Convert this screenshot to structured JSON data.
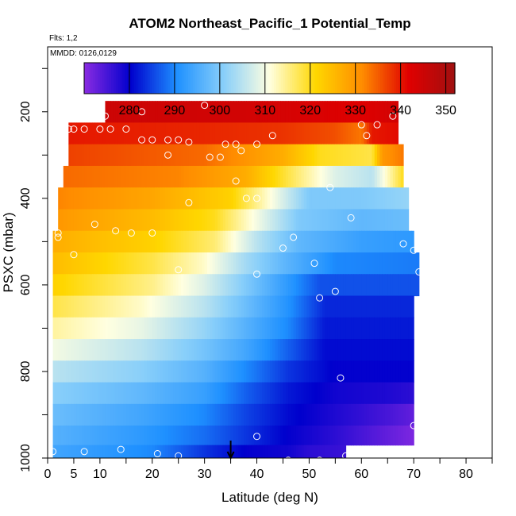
{
  "chart_data": {
    "type": "heatmap",
    "title": "ATOM2 Northeast_Pacific_1 Potential_Temp",
    "annotations": [
      "Flts: 1,2",
      "MMDD: 0126,0129"
    ],
    "xlabel": "Latitude (deg N)",
    "ylabel": "PSXC (mbar)",
    "xlim": [
      0,
      85
    ],
    "ylim": [
      1000,
      50
    ],
    "x_ticks": [
      0,
      5,
      10,
      20,
      30,
      40,
      50,
      60,
      70,
      80
    ],
    "y_ticks": [
      200,
      400,
      600,
      800,
      1000
    ],
    "colorbar": {
      "range": [
        270,
        352
      ],
      "ticks": [
        280,
        290,
        300,
        310,
        320,
        330,
        340,
        350
      ],
      "colors": [
        "#8a2be2",
        "#0000cd",
        "#1e90ff",
        "#87cefa",
        "#ffffe0",
        "#ffd700",
        "#ff8c00",
        "#e00000",
        "#a01010"
      ]
    },
    "marker": {
      "latitude": 35,
      "pressure": 1000,
      "shape": "down-arrow"
    },
    "bands": [
      {
        "pressure": 200,
        "lat_range": [
          11,
          67
        ],
        "control": [
          [
            11,
            345
          ],
          [
            40,
            344
          ],
          [
            60,
            342
          ],
          [
            67,
            344
          ]
        ]
      },
      {
        "pressure": 250,
        "lat_range": [
          4,
          67
        ],
        "control": [
          [
            4,
            340
          ],
          [
            30,
            339
          ],
          [
            45,
            338
          ],
          [
            55,
            336
          ],
          [
            60,
            333
          ],
          [
            62,
            340
          ],
          [
            67,
            341
          ]
        ]
      },
      {
        "pressure": 300,
        "lat_range": [
          4,
          68
        ],
        "control": [
          [
            4,
            337
          ],
          [
            30,
            334
          ],
          [
            45,
            327
          ],
          [
            52,
            320
          ],
          [
            62,
            318
          ],
          [
            64,
            330
          ],
          [
            68,
            333
          ]
        ]
      },
      {
        "pressure": 350,
        "lat_range": [
          3,
          68
        ],
        "control": [
          [
            3,
            334
          ],
          [
            25,
            332
          ],
          [
            38,
            327
          ],
          [
            46,
            318
          ],
          [
            55,
            308
          ],
          [
            62,
            305
          ],
          [
            68,
            320
          ]
        ]
      },
      {
        "pressure": 400,
        "lat_range": [
          2,
          69
        ],
        "control": [
          [
            2,
            332
          ],
          [
            20,
            328
          ],
          [
            35,
            322
          ],
          [
            42,
            312
          ],
          [
            50,
            300
          ],
          [
            60,
            300
          ],
          [
            69,
            302
          ]
        ]
      },
      {
        "pressure": 450,
        "lat_range": [
          2,
          69
        ],
        "control": [
          [
            2,
            330
          ],
          [
            20,
            325
          ],
          [
            32,
            320
          ],
          [
            40,
            310
          ],
          [
            48,
            300
          ],
          [
            60,
            297
          ],
          [
            69,
            298
          ]
        ]
      },
      {
        "pressure": 500,
        "lat_range": [
          1,
          70
        ],
        "control": [
          [
            1,
            327
          ],
          [
            20,
            322
          ],
          [
            32,
            316
          ],
          [
            40,
            305
          ],
          [
            48,
            297
          ],
          [
            60,
            293
          ],
          [
            70,
            292
          ]
        ]
      },
      {
        "pressure": 550,
        "lat_range": [
          1,
          71
        ],
        "control": [
          [
            1,
            325
          ],
          [
            20,
            318
          ],
          [
            30,
            312
          ],
          [
            38,
            303
          ],
          [
            45,
            297
          ],
          [
            55,
            290
          ],
          [
            71,
            289
          ]
        ]
      },
      {
        "pressure": 600,
        "lat_range": [
          1,
          71
        ],
        "control": [
          [
            1,
            322
          ],
          [
            20,
            315
          ],
          [
            30,
            308
          ],
          [
            38,
            300
          ],
          [
            45,
            293
          ],
          [
            52,
            286
          ],
          [
            71,
            286
          ]
        ]
      },
      {
        "pressure": 650,
        "lat_range": [
          1,
          70
        ],
        "control": [
          [
            1,
            318
          ],
          [
            18,
            312
          ],
          [
            30,
            305
          ],
          [
            38,
            298
          ],
          [
            46,
            291
          ],
          [
            53,
            283
          ],
          [
            70,
            283
          ]
        ]
      },
      {
        "pressure": 700,
        "lat_range": [
          1,
          70
        ],
        "control": [
          [
            1,
            314
          ],
          [
            18,
            309
          ],
          [
            30,
            302
          ],
          [
            38,
            296
          ],
          [
            46,
            290
          ],
          [
            53,
            282
          ],
          [
            70,
            282
          ]
        ]
      },
      {
        "pressure": 750,
        "lat_range": [
          1,
          70
        ],
        "control": [
          [
            1,
            310
          ],
          [
            18,
            305
          ],
          [
            30,
            299
          ],
          [
            38,
            294
          ],
          [
            46,
            287
          ],
          [
            53,
            281
          ],
          [
            70,
            281
          ]
        ]
      },
      {
        "pressure": 800,
        "lat_range": [
          1,
          70
        ],
        "control": [
          [
            1,
            305
          ],
          [
            18,
            301
          ],
          [
            30,
            296
          ],
          [
            38,
            290
          ],
          [
            46,
            284
          ],
          [
            55,
            280
          ],
          [
            70,
            280
          ]
        ]
      },
      {
        "pressure": 850,
        "lat_range": [
          1,
          70
        ],
        "control": [
          [
            1,
            301
          ],
          [
            18,
            297
          ],
          [
            30,
            293
          ],
          [
            38,
            287
          ],
          [
            46,
            282
          ],
          [
            55,
            279
          ],
          [
            65,
            278
          ],
          [
            70,
            277
          ]
        ]
      },
      {
        "pressure": 900,
        "lat_range": [
          1,
          70
        ],
        "control": [
          [
            1,
            298
          ],
          [
            18,
            294
          ],
          [
            30,
            290
          ],
          [
            38,
            285
          ],
          [
            46,
            281
          ],
          [
            55,
            278
          ],
          [
            65,
            275
          ],
          [
            70,
            273
          ]
        ]
      },
      {
        "pressure": 950,
        "lat_range": [
          1,
          70
        ],
        "control": [
          [
            1,
            296
          ],
          [
            18,
            292
          ],
          [
            30,
            288
          ],
          [
            38,
            284
          ],
          [
            46,
            280
          ],
          [
            55,
            277
          ],
          [
            65,
            273
          ],
          [
            70,
            271
          ]
        ]
      },
      {
        "pressure": 990,
        "lat_range": [
          1,
          57
        ],
        "control": [
          [
            1,
            294
          ],
          [
            20,
            290
          ],
          [
            30,
            284
          ],
          [
            38,
            280
          ],
          [
            46,
            279
          ],
          [
            50,
            277
          ],
          [
            57,
            276
          ]
        ]
      }
    ],
    "points": [
      [
        11,
        210
      ],
      [
        30,
        185
      ],
      [
        18,
        200
      ],
      [
        4,
        240
      ],
      [
        5,
        240
      ],
      [
        7,
        240
      ],
      [
        10,
        240
      ],
      [
        12,
        240
      ],
      [
        15,
        240
      ],
      [
        18,
        265
      ],
      [
        20,
        265
      ],
      [
        23,
        265
      ],
      [
        25,
        265
      ],
      [
        27,
        270
      ],
      [
        23,
        300
      ],
      [
        31,
        305
      ],
      [
        33,
        305
      ],
      [
        34,
        275
      ],
      [
        36,
        275
      ],
      [
        37,
        290
      ],
      [
        40,
        275
      ],
      [
        43,
        255
      ],
      [
        60,
        230
      ],
      [
        61,
        255
      ],
      [
        63,
        230
      ],
      [
        66,
        210
      ],
      [
        36,
        360
      ],
      [
        38,
        400
      ],
      [
        27,
        410
      ],
      [
        40,
        400
      ],
      [
        54,
        375
      ],
      [
        58,
        445
      ],
      [
        2,
        480
      ],
      [
        2,
        490
      ],
      [
        5,
        530
      ],
      [
        9,
        460
      ],
      [
        13,
        475
      ],
      [
        16,
        480
      ],
      [
        20,
        480
      ],
      [
        45,
        515
      ],
      [
        47,
        490
      ],
      [
        68,
        505
      ],
      [
        70,
        520
      ],
      [
        71,
        570
      ],
      [
        25,
        565
      ],
      [
        40,
        575
      ],
      [
        51,
        550
      ],
      [
        52,
        630
      ],
      [
        55,
        615
      ],
      [
        56,
        815
      ],
      [
        40,
        950
      ],
      [
        70,
        925
      ],
      [
        1,
        985
      ],
      [
        7,
        985
      ],
      [
        14,
        980
      ],
      [
        21,
        990
      ],
      [
        25,
        995
      ],
      [
        46,
        1005
      ],
      [
        52,
        1005
      ],
      [
        57,
        995
      ]
    ]
  }
}
